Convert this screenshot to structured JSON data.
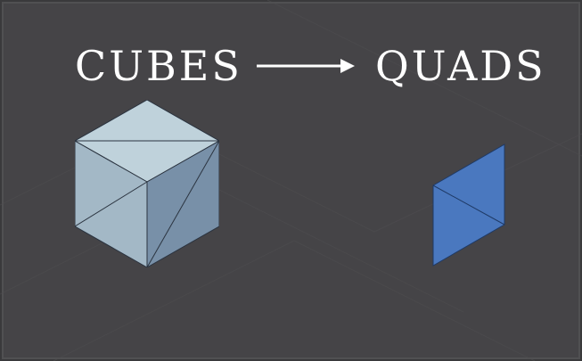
{
  "heading": {
    "left": "CUBES",
    "right": "QUADS"
  },
  "colors": {
    "background": "#454447",
    "text": "#ffffff",
    "cube_top": "#bfd2db",
    "cube_left": "#a3b8c6",
    "cube_right": "#7890a8",
    "cube_edge": "#2b3440",
    "quad": "#4a78bf",
    "quad_edge": "#1f3a66"
  },
  "icons": {
    "arrow": "right-arrow-icon",
    "cube": "wireframe-cube-icon",
    "quad": "quad-face-icon"
  }
}
